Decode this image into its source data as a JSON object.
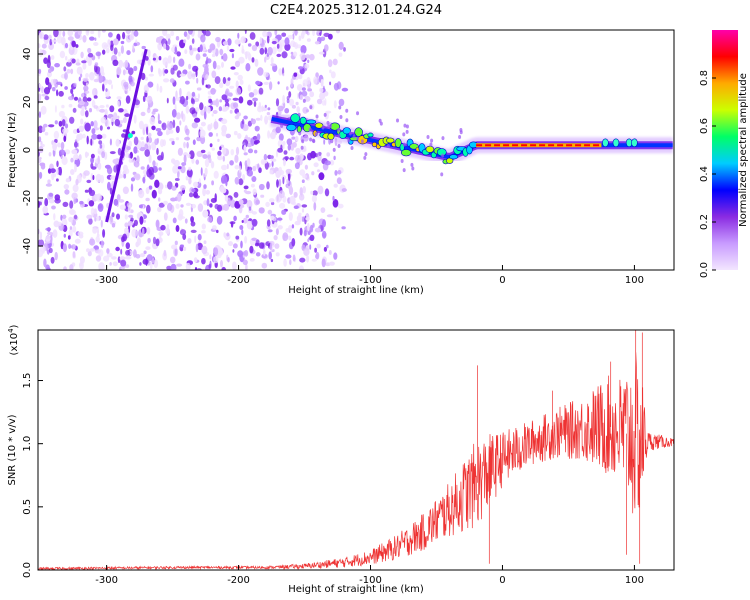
{
  "title": "C2E4.2025.312.01.24.G24",
  "chart_data": [
    {
      "type": "heatmap",
      "name": "spectrogram",
      "xlabel": "Height of straight line (km)",
      "ylabel": "Frequency (Hz)",
      "xlim": [
        -352,
        130
      ],
      "ylim": [
        -50,
        50
      ],
      "xticks": [
        -300,
        -200,
        -100,
        0,
        100
      ],
      "yticks": [
        -40,
        -20,
        0,
        20,
        40
      ],
      "colorbar": {
        "label": "Normalized spectral amplitude",
        "range": [
          0,
          1
        ],
        "ticks": [
          "0.0",
          "0.2",
          "0.4",
          "0.6",
          "0.8"
        ],
        "tick_values": [
          0.0,
          0.2,
          0.4,
          0.6,
          0.8
        ],
        "colors": [
          "#f3e6ff",
          "#c89bff",
          "#8a2be2",
          "#0000ff",
          "#00ccff",
          "#00ff66",
          "#ccff00",
          "#ffaa00",
          "#ff0000",
          "#ff00aa"
        ]
      },
      "features": {
        "noise_region_x": [
          -352,
          -140
        ],
        "diagonal_streak": {
          "x": [
            -300,
            -270
          ],
          "y": [
            -30,
            42
          ]
        },
        "signal_band": {
          "x": [
            -175,
            130
          ],
          "y_start": 13,
          "y_dip_x": -40,
          "y_dip": -3,
          "y_end": 2
        },
        "peak_segment_x": [
          -20,
          75
        ]
      }
    },
    {
      "type": "line",
      "name": "snr",
      "xlabel": "Height of straight line (km)",
      "ylabel": "SNR (10 * v/v)",
      "multiplier_label": "(x10",
      "multiplier_exp": "4",
      "xlim": [
        -352,
        130
      ],
      "ylim": [
        0,
        1.9
      ],
      "xticks": [
        -300,
        -200,
        -100,
        0,
        100
      ],
      "yticks": [
        "0.0",
        "0.5",
        "1.0",
        "1.5"
      ],
      "ytick_values": [
        0.0,
        0.5,
        1.0,
        1.5
      ],
      "color": "#ee3333",
      "envelope": {
        "x": [
          -352,
          -250,
          -180,
          -150,
          -120,
          -100,
          -80,
          -60,
          -40,
          -20,
          -10,
          0,
          20,
          40,
          60,
          80,
          90,
          100,
          105,
          110,
          130
        ],
        "base": [
          0.01,
          0.02,
          0.02,
          0.03,
          0.06,
          0.1,
          0.18,
          0.3,
          0.48,
          0.68,
          0.78,
          0.88,
          1.0,
          1.08,
          1.12,
          1.14,
          1.1,
          1.05,
          1.03,
          1.02,
          1.01
        ],
        "amp": [
          0.01,
          0.01,
          0.01,
          0.02,
          0.04,
          0.06,
          0.1,
          0.15,
          0.22,
          0.35,
          0.3,
          0.22,
          0.18,
          0.2,
          0.25,
          0.4,
          0.45,
          0.7,
          0.6,
          0.08,
          0.03
        ]
      },
      "spikes": [
        {
          "x": -19,
          "y": 1.62
        },
        {
          "x": -10,
          "y": 0.05
        },
        {
          "x": 38,
          "y": 1.42
        },
        {
          "x": 82,
          "y": 1.65
        },
        {
          "x": 94,
          "y": 0.12
        },
        {
          "x": 101,
          "y": 1.9
        },
        {
          "x": 104,
          "y": 0.05
        },
        {
          "x": 106,
          "y": 1.88
        }
      ]
    }
  ]
}
